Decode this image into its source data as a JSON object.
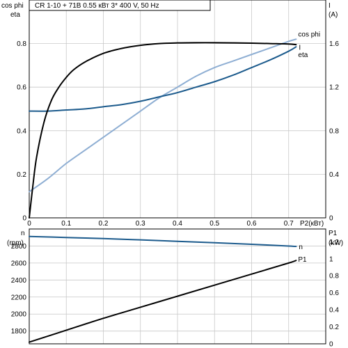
{
  "chart_data": [
    {
      "type": "line",
      "title": "CR 1-10 + 71B    0.55 кВт    3* 400 V, 50 Hz",
      "xlabel": "P2(кВт)",
      "ylabel_left": [
        "cos phi",
        "eta"
      ],
      "ylabel_right": [
        "I",
        "(A)"
      ],
      "xlim": [
        0,
        0.8
      ],
      "ylim_left": [
        0,
        1.0
      ],
      "ylim_right": [
        0,
        2.0
      ],
      "x_ticks": [
        "0",
        "0.1",
        "0.2",
        "0.3",
        "0.4",
        "0.5",
        "0.6",
        "0.7"
      ],
      "y_ticks_left": [
        "0",
        "0.2",
        "0.4",
        "0.6",
        "0.8"
      ],
      "y_ticks_right": [
        "0",
        "0.4",
        "0.8",
        "1.2",
        "1.6"
      ],
      "grid": true,
      "series": [
        {
          "name": "cos phi",
          "axis": "left",
          "color": "#8eaed3",
          "x": [
            0,
            0.05,
            0.1,
            0.15,
            0.2,
            0.25,
            0.3,
            0.35,
            0.4,
            0.45,
            0.5,
            0.55,
            0.6,
            0.65,
            0.7,
            0.72
          ],
          "y": [
            0.12,
            0.18,
            0.25,
            0.31,
            0.37,
            0.43,
            0.49,
            0.55,
            0.6,
            0.65,
            0.69,
            0.72,
            0.75,
            0.78,
            0.81,
            0.82
          ]
        },
        {
          "name": "I",
          "axis": "right",
          "color": "#1b5a8c",
          "x": [
            0,
            0.05,
            0.1,
            0.15,
            0.2,
            0.25,
            0.3,
            0.35,
            0.4,
            0.45,
            0.5,
            0.55,
            0.6,
            0.65,
            0.7,
            0.72
          ],
          "y": [
            0.98,
            0.98,
            0.99,
            1.0,
            1.02,
            1.04,
            1.07,
            1.11,
            1.15,
            1.2,
            1.25,
            1.31,
            1.38,
            1.45,
            1.53,
            1.57
          ]
        },
        {
          "name": "eta",
          "axis": "left",
          "color": "#000000",
          "x": [
            0,
            0.01,
            0.02,
            0.04,
            0.06,
            0.08,
            0.1,
            0.12,
            0.15,
            0.2,
            0.25,
            0.3,
            0.35,
            0.4,
            0.45,
            0.5,
            0.55,
            0.6,
            0.65,
            0.7,
            0.72
          ],
          "y": [
            0,
            0.15,
            0.28,
            0.44,
            0.54,
            0.6,
            0.645,
            0.68,
            0.715,
            0.755,
            0.778,
            0.792,
            0.8,
            0.803,
            0.804,
            0.804,
            0.803,
            0.802,
            0.8,
            0.798,
            0.795
          ]
        }
      ]
    },
    {
      "type": "line",
      "xlim": [
        0,
        0.8
      ],
      "ylabel_left": [
        "n",
        "(rpm)"
      ],
      "ylabel_right": [
        "P1",
        "(kW)"
      ],
      "ylim_left": [
        1650,
        3000
      ],
      "ylim_right": [
        0,
        1.35
      ],
      "y_ticks_left": [
        "1800",
        "2000",
        "2200",
        "2400",
        "2600",
        "2800"
      ],
      "y_ticks_right": [
        "0",
        "0.2",
        "0.4",
        "0.6",
        "0.8",
        "1",
        "1.2"
      ],
      "grid": true,
      "series": [
        {
          "name": "n",
          "axis": "left",
          "color": "#1b5a8c",
          "x": [
            0,
            0.1,
            0.2,
            0.3,
            0.4,
            0.5,
            0.6,
            0.7,
            0.72
          ],
          "y": [
            2912,
            2900,
            2888,
            2872,
            2855,
            2838,
            2820,
            2800,
            2795
          ]
        },
        {
          "name": "P1",
          "axis": "right",
          "color": "#000000",
          "x": [
            0,
            0.1,
            0.2,
            0.3,
            0.4,
            0.5,
            0.6,
            0.7,
            0.72
          ],
          "y": [
            0.02,
            0.16,
            0.3,
            0.43,
            0.56,
            0.69,
            0.82,
            0.95,
            0.98
          ]
        }
      ]
    }
  ]
}
